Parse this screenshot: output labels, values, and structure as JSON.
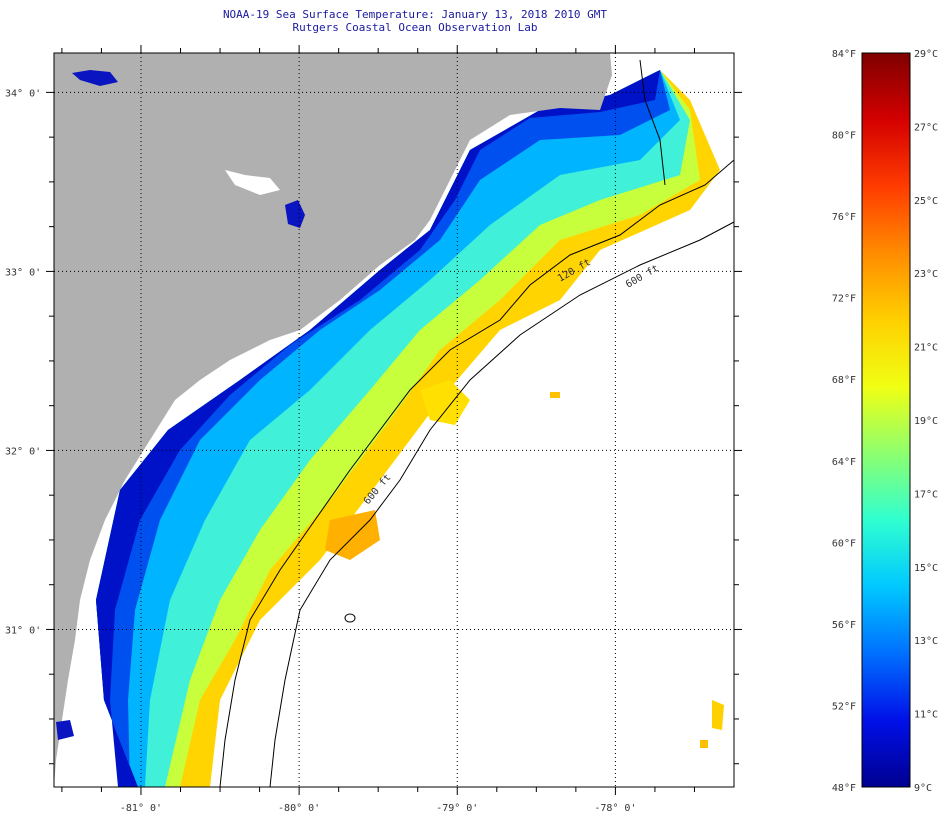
{
  "header": {
    "title": "NOAA-19 Sea Surface Temperature:  January 13, 2018 2010 GMT",
    "subtitle": "Rutgers Coastal Ocean Observation Lab"
  },
  "map": {
    "lat_range": [
      30.12,
      34.22
    ],
    "lon_range": [
      -81.55,
      -77.25
    ],
    "lat_ticks": [
      {
        "value": 34,
        "label": "34° 0'"
      },
      {
        "value": 33,
        "label": "33° 0'"
      },
      {
        "value": 32,
        "label": "32° 0'"
      },
      {
        "value": 31,
        "label": "31° 0'"
      }
    ],
    "lon_ticks": [
      {
        "value": -81,
        "label": "-81° 0'"
      },
      {
        "value": -80,
        "label": "-80° 0'"
      },
      {
        "value": -79,
        "label": "-79° 0'"
      },
      {
        "value": -78,
        "label": "-78° 0'"
      }
    ],
    "contour_labels": [
      "120 ft",
      "600 ft",
      "600 ft"
    ],
    "colors": {
      "land": "#b0b0b0",
      "cloud": "#ffffff",
      "contour": "#000000",
      "grid": "#000000"
    }
  },
  "colorbar": {
    "min_f": 48,
    "max_f": 84,
    "min_c": 9,
    "max_c": 29,
    "fahrenheit_labels": [
      "84°F",
      "80°F",
      "76°F",
      "72°F",
      "68°F",
      "64°F",
      "60°F",
      "56°F",
      "52°F",
      "48°F"
    ],
    "celsius_labels": [
      "29°C",
      "27°C",
      "25°C",
      "23°C",
      "21°C",
      "19°C",
      "17°C",
      "15°C",
      "13°C",
      "11°C",
      "9°C"
    ],
    "gradient": [
      "#7f0000",
      "#d40000",
      "#ff3c00",
      "#ff8c00",
      "#ffd000",
      "#f0ff14",
      "#8eff6e",
      "#30ffd0",
      "#00c8ff",
      "#0070ff",
      "#0010e8",
      "#00008f"
    ]
  }
}
